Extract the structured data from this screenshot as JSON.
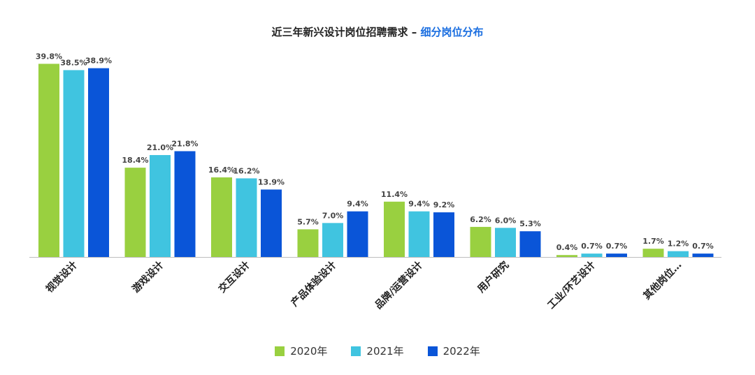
{
  "chart_data": {
    "type": "bar",
    "title_main": "近三年新兴设计岗位招聘需求 – ",
    "title_accent": "细分岗位分布",
    "categories": [
      "视觉设计",
      "游戏设计",
      "交互设计",
      "产品体验设计",
      "品牌/运营设计",
      "用户研究",
      "工业/环艺设计",
      "其他岗位…"
    ],
    "series": [
      {
        "name": "2020年",
        "color": "#99d040",
        "values": [
          39.8,
          18.4,
          16.4,
          5.7,
          11.4,
          6.2,
          0.4,
          1.7
        ]
      },
      {
        "name": "2021年",
        "color": "#40c4e0",
        "values": [
          38.5,
          21.0,
          16.2,
          7.0,
          9.4,
          6.0,
          0.7,
          1.2
        ]
      },
      {
        "name": "2022年",
        "color": "#0a55d8",
        "values": [
          38.9,
          21.8,
          13.9,
          9.4,
          9.2,
          5.3,
          0.7,
          0.7
        ]
      }
    ],
    "value_suffix": "%",
    "ylim": [
      0,
      40
    ],
    "grid": false,
    "legend_position": "bottom-center"
  }
}
